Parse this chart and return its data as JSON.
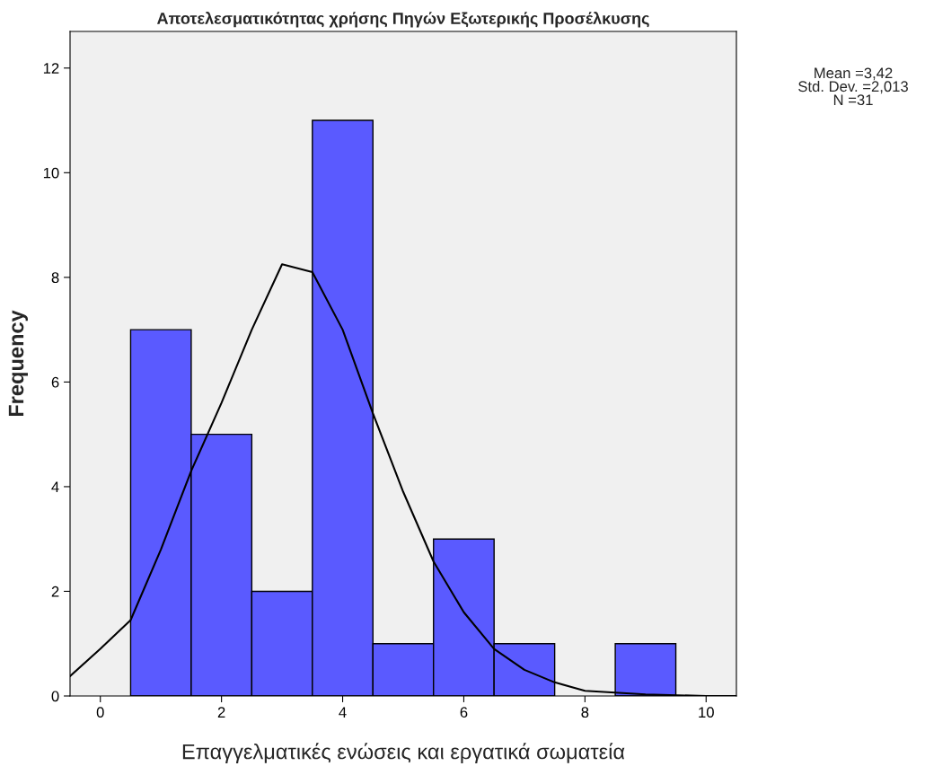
{
  "chart_data": {
    "type": "histogram",
    "title": "Αποτελεσματικότητας χρήσης Πηγών Εξωτερικής Προσέλκυσης",
    "xlabel": "Επαγγελματικές ενώσεις και εργατικά σωματεία",
    "ylabel": "Frequency",
    "bins": [
      0.5,
      1.5,
      2.5,
      3.5,
      4.5,
      5.5,
      6.5,
      7.5,
      8.5,
      9.5
    ],
    "values": [
      7,
      5,
      2,
      11,
      1,
      3,
      1,
      0,
      1
    ],
    "color": "#5a5aff",
    "series": [
      {
        "type": "line",
        "color": "#000000",
        "x": [
          -0.5,
          0,
          0.5,
          1,
          1.5,
          2,
          2.5,
          3,
          3.5,
          4,
          4.5,
          5,
          5.5,
          6,
          6.5,
          7,
          7.5,
          8,
          9,
          10,
          10.5
        ],
        "values": [
          0.38,
          0.9,
          1.45,
          2.8,
          4.3,
          5.6,
          7.0,
          8.25,
          8.1,
          7.0,
          5.4,
          3.9,
          2.57,
          1.6,
          0.9,
          0.5,
          0.26,
          0.1,
          0.03,
          0.0,
          0.0
        ]
      }
    ],
    "xlim": [
      -0.5,
      10.5
    ],
    "ylim": [
      0,
      12.7
    ],
    "xticks": [
      0,
      2,
      4,
      6,
      8,
      10
    ],
    "yticks": [
      0,
      2,
      4,
      6,
      8,
      10,
      12
    ],
    "grid": false,
    "annotations": [
      "Mean =3,42\nStd. Dev. =2,013\nN =31"
    ]
  }
}
